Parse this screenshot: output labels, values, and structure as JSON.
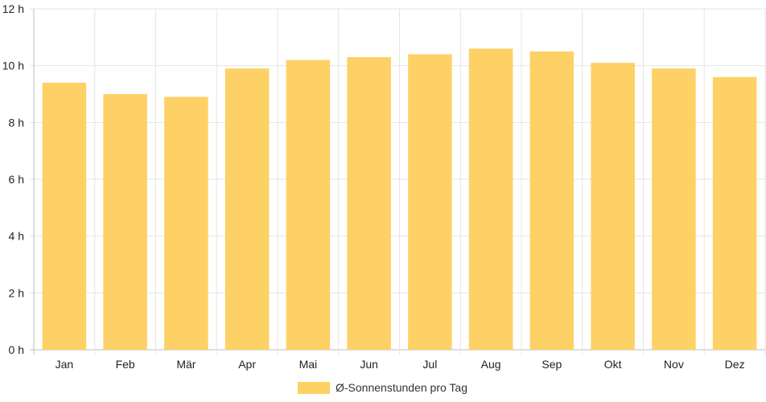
{
  "chart_data": {
    "type": "bar",
    "categories": [
      "Jan",
      "Feb",
      "Mär",
      "Apr",
      "Mai",
      "Jun",
      "Jul",
      "Aug",
      "Sep",
      "Okt",
      "Nov",
      "Dez"
    ],
    "series": [
      {
        "name": "Ø-Sonnenstunden pro Tag",
        "values": [
          9.4,
          9.0,
          8.9,
          9.9,
          10.2,
          10.3,
          10.4,
          10.6,
          10.5,
          10.1,
          9.9,
          9.6
        ],
        "color": "#FDD166"
      }
    ],
    "y_ticks": [
      "0 h",
      "2 h",
      "4 h",
      "6 h",
      "8 h",
      "10 h",
      "12 h"
    ],
    "ylim": [
      0,
      12
    ],
    "grid": true,
    "legend_position": "bottom"
  }
}
